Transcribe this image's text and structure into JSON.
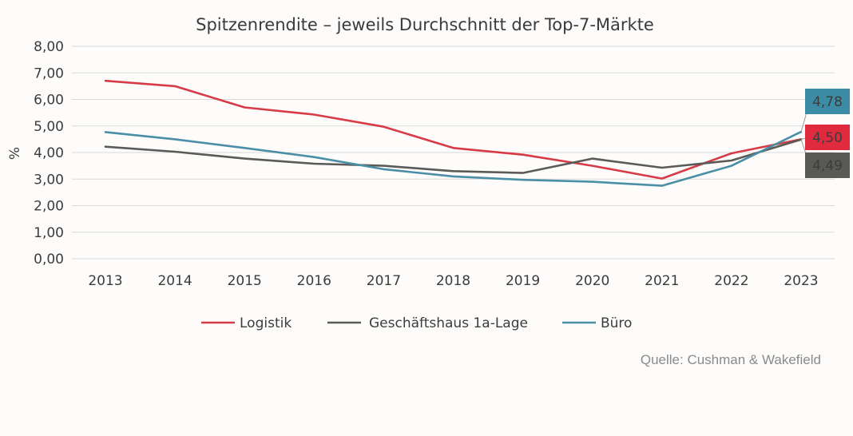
{
  "chart_data": {
    "type": "line",
    "title": "Spitzenrendite – jeweils Durchschnitt der Top-7-Märkte",
    "ylabel": "%",
    "xlabel": "",
    "ylim": [
      0,
      8
    ],
    "y_ticks": [
      "0,00",
      "1,00",
      "2,00",
      "3,00",
      "4,00",
      "5,00",
      "6,00",
      "7,00",
      "8,00"
    ],
    "y_tick_values": [
      0,
      1,
      2,
      3,
      4,
      5,
      6,
      7,
      8
    ],
    "categories": [
      "2013",
      "2014",
      "2015",
      "2016",
      "2017",
      "2018",
      "2019",
      "2020",
      "2021",
      "2022",
      "2023"
    ],
    "grid": true,
    "legend_position": "bottom",
    "series": [
      {
        "name": "Logistik",
        "color": "#d63b46",
        "values": [
          6.7,
          6.5,
          5.7,
          5.43,
          4.97,
          4.17,
          3.92,
          3.5,
          3.02,
          3.97,
          4.5
        ],
        "end_label": "4,50",
        "end_label_bg": "#e02b3e"
      },
      {
        "name": "Geschäftshaus 1a-Lage",
        "color": "#5a5a58",
        "values": [
          4.22,
          4.03,
          3.77,
          3.58,
          3.5,
          3.3,
          3.23,
          3.77,
          3.43,
          3.7,
          4.49
        ],
        "end_label": "4,49",
        "end_label_bg": "#5a5a55"
      },
      {
        "name": "Büro",
        "color": "#4a8fa6",
        "values": [
          4.77,
          4.5,
          4.17,
          3.83,
          3.37,
          3.1,
          2.97,
          2.9,
          2.75,
          3.5,
          4.78
        ],
        "end_label": "4,78",
        "end_label_bg": "#3d8ca6"
      }
    ],
    "source": "Quelle: Cushman & Wakefield"
  }
}
